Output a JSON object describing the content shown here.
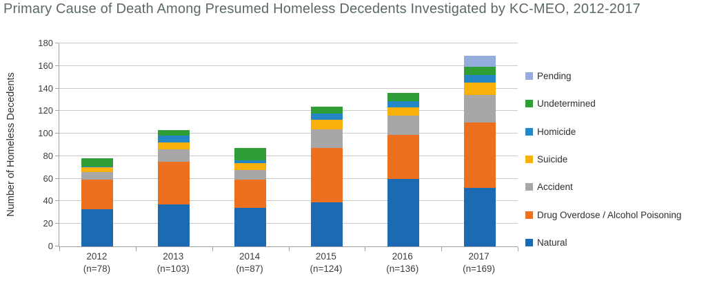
{
  "title": "Primary Cause of Death Among Presumed Homeless Decedents Investigated by KC-MEO, 2012-2017",
  "colors": {
    "title_text": "#5a6a60",
    "axis_line": "#9e9e9e",
    "gridline": "#c9c9c9"
  },
  "chart_data": {
    "type": "bar",
    "stacked": true,
    "title": "Primary Cause of Death Among Presumed Homeless Decedents Investigated by KC-MEO, 2012-2017",
    "xlabel": "",
    "ylabel": "Number of Homeless Decedents",
    "ylim": [
      0,
      180
    ],
    "ytick_step": 20,
    "grid": true,
    "legend_position": "right",
    "categories": [
      "2012",
      "2013",
      "2014",
      "2015",
      "2016",
      "2017"
    ],
    "category_sublabels": [
      "(n=78)",
      "(n=103)",
      "(n=87)",
      "(n=124)",
      "(n=136)",
      "(n=169)"
    ],
    "totals": [
      78,
      103,
      87,
      124,
      136,
      169
    ],
    "series": [
      {
        "name": "Natural",
        "color": "#1b6ab3",
        "values": [
          33,
          37,
          34,
          39,
          60,
          52
        ]
      },
      {
        "name": "Drug Overdose / Alcohol Poisoning",
        "color": "#ed701e",
        "values": [
          26,
          38,
          25,
          48,
          39,
          58
        ]
      },
      {
        "name": "Accident",
        "color": "#a7a7a7",
        "values": [
          7,
          11,
          9,
          17,
          17,
          24
        ]
      },
      {
        "name": "Suicide",
        "color": "#f9b00d",
        "values": [
          4,
          6,
          6,
          8,
          7,
          11
        ]
      },
      {
        "name": "Homicide",
        "color": "#2387c6",
        "values": [
          1,
          6,
          2,
          6,
          6,
          7
        ]
      },
      {
        "name": "Undetermined",
        "color": "#2f9e36",
        "values": [
          7,
          5,
          11,
          6,
          7,
          7
        ]
      },
      {
        "name": "Pending",
        "color": "#93addc",
        "values": [
          0,
          0,
          0,
          0,
          0,
          10
        ]
      }
    ],
    "legend_order": [
      "Pending",
      "Undetermined",
      "Homicide",
      "Suicide",
      "Accident",
      "Drug Overdose / Alcohol Poisoning",
      "Natural"
    ]
  }
}
